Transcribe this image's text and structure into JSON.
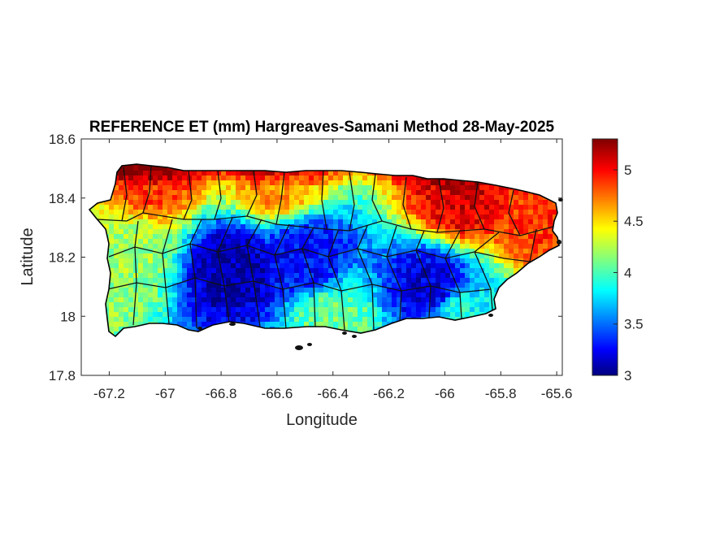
{
  "chart_data": {
    "type": "heatmap",
    "title": "REFERENCE ET (mm) Hargreaves-Samani Method  28-May-2025",
    "xlabel": "Longitude",
    "ylabel": "Latitude",
    "xlim": [
      -67.3,
      -65.58
    ],
    "ylim": [
      17.8,
      18.6
    ],
    "x_ticks": [
      -67.2,
      -67,
      -66.8,
      -66.6,
      -66.4,
      -66.2,
      -66,
      -65.8,
      -65.6
    ],
    "x_tick_labels": [
      "-67.2",
      "-67",
      "-66.8",
      "-66.6",
      "-66.4",
      "-66.2",
      "-66",
      "-65.8",
      "-65.6"
    ],
    "y_ticks": [
      17.8,
      18,
      18.2,
      18.4,
      18.6
    ],
    "y_tick_labels": [
      "17.8",
      "18",
      "18.2",
      "18.4",
      "18.6"
    ],
    "colorbar": {
      "colormap": "jet",
      "range": [
        3,
        5.3
      ],
      "ticks": [
        3,
        3.5,
        4,
        4.5,
        5
      ],
      "tick_labels": [
        "3",
        "3.5",
        "4",
        "4.5",
        "5"
      ]
    },
    "region_value_estimates": [
      {
        "region": "north coast west",
        "lon": -67.05,
        "lat": 18.48,
        "value": 4.9
      },
      {
        "region": "north coast central",
        "lon": -66.6,
        "lat": 18.46,
        "value": 4.7
      },
      {
        "region": "northeast",
        "lon": -65.95,
        "lat": 18.4,
        "value": 5.1
      },
      {
        "region": "east tip",
        "lon": -65.65,
        "lat": 18.35,
        "value": 4.9
      },
      {
        "region": "central mountains",
        "lon": -66.75,
        "lat": 18.16,
        "value": 3.1
      },
      {
        "region": "central south",
        "lon": -66.5,
        "lat": 18.2,
        "value": 3.3
      },
      {
        "region": "east central",
        "lon": -66.05,
        "lat": 18.1,
        "value": 3.2
      },
      {
        "region": "west",
        "lon": -67.15,
        "lat": 18.2,
        "value": 4.2
      },
      {
        "region": "south coast",
        "lon": -66.4,
        "lat": 17.98,
        "value": 4.1
      },
      {
        "region": "southeast",
        "lon": -65.95,
        "lat": 18.0,
        "value": 3.9
      }
    ]
  }
}
